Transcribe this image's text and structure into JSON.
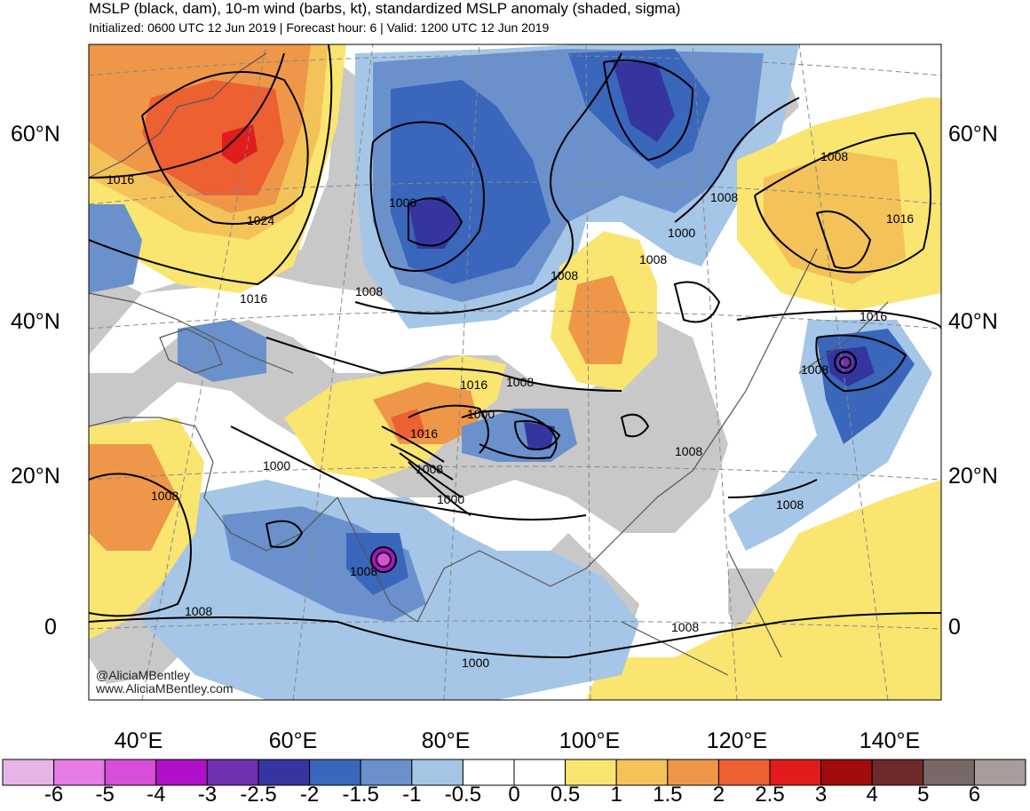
{
  "header": {
    "title": "MSLP (black, dam), 10-m wind (barbs, kt), standardized MSLP anomaly (shaded, sigma)",
    "subtitle": "Initialized: 0600 UTC 12 Jun 2019 | Forecast hour: 6 | Valid: 1200 UTC 12 Jun 2019"
  },
  "axes": {
    "lat_left": [
      "60°N",
      "40°N",
      "20°N",
      "0"
    ],
    "lat_right": [
      "60°N",
      "40°N",
      "20°N",
      "0"
    ],
    "lon": [
      "40°E",
      "60°E",
      "80°E",
      "100°E",
      "120°E",
      "140°E"
    ]
  },
  "credit": {
    "handle": "@AliciaMBentley",
    "site": "www.AliciaMBentley.com"
  },
  "isobar_labels": [
    "1016",
    "1024",
    "1016",
    "1000",
    "1008",
    "1008",
    "1008",
    "1000",
    "1008",
    "1008",
    "1016",
    "1016",
    "1008",
    "1016",
    "1008",
    "1000",
    "1016",
    "1008",
    "1000",
    "1008",
    "1000",
    "1008",
    "1008",
    "1000",
    "1008",
    "1008",
    "1008"
  ],
  "colorbar": {
    "colors": [
      "#e8b4e8",
      "#e67be6",
      "#d84ed8",
      "#b010c8",
      "#7030b0",
      "#3535a0",
      "#3a66bb",
      "#6a91cc",
      "#a5c6e6",
      "#ffffff",
      "#ffffff",
      "#f9e570",
      "#f3c258",
      "#ef9748",
      "#ec6032",
      "#e01c1c",
      "#a00c0c",
      "#6e2a2a",
      "#786868",
      "#a89c9c"
    ],
    "labels": [
      "-6",
      "-5",
      "-4",
      "-3",
      "-2.5",
      "-2",
      "-1.5",
      "-1",
      "-0.5",
      "0",
      "0.5",
      "1",
      "1.5",
      "2",
      "2.5",
      "3",
      "4",
      "5",
      "6"
    ]
  },
  "palette": {
    "land_gray": "#c8c8c8",
    "border": "#555555",
    "isobar": "#000000"
  }
}
